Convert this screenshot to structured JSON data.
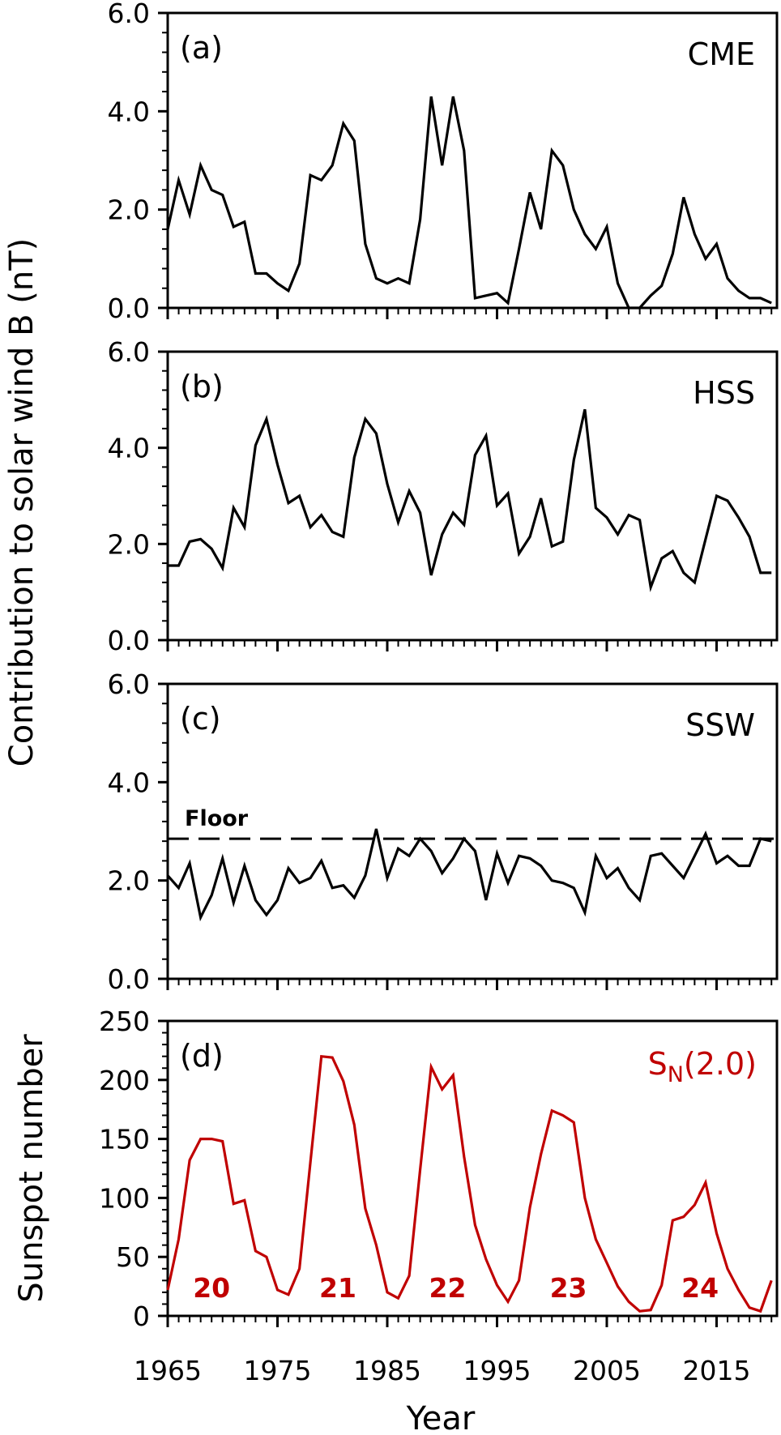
{
  "chart_data": [
    {
      "type": "line",
      "panel": "(a)",
      "series_name": "CME",
      "title": "",
      "ylabel": "Contribution to solar wind B (nT)",
      "ylim": [
        0,
        6
      ],
      "yticks": [
        "0.0",
        "2.0",
        "4.0",
        "6.0"
      ],
      "color": "#000000",
      "x": [
        1965,
        1966,
        1967,
        1968,
        1969,
        1970,
        1971,
        1972,
        1973,
        1974,
        1975,
        1976,
        1977,
        1978,
        1979,
        1980,
        1981,
        1982,
        1983,
        1984,
        1985,
        1986,
        1987,
        1988,
        1989,
        1990,
        1991,
        1992,
        1993,
        1994,
        1995,
        1996,
        1997,
        1998,
        1999,
        2000,
        2001,
        2002,
        2003,
        2004,
        2005,
        2006,
        2007,
        2008,
        2009,
        2010,
        2011,
        2012,
        2013,
        2014,
        2015,
        2016,
        2017,
        2018,
        2019,
        2020
      ],
      "values": [
        1.6,
        2.6,
        1.9,
        2.9,
        2.4,
        2.3,
        1.65,
        1.75,
        0.7,
        0.7,
        0.5,
        0.35,
        0.9,
        2.7,
        2.6,
        2.9,
        3.75,
        3.4,
        1.3,
        0.6,
        0.5,
        0.6,
        0.5,
        1.8,
        4.3,
        2.9,
        4.3,
        3.2,
        0.2,
        0.25,
        0.3,
        0.1,
        1.2,
        2.35,
        1.6,
        3.2,
        2.9,
        2.0,
        1.5,
        1.2,
        1.65,
        0.5,
        0.0,
        0.0,
        0.25,
        0.45,
        1.1,
        2.25,
        1.5,
        1.0,
        1.3,
        0.6,
        0.35,
        0.2,
        0.2,
        0.1
      ]
    },
    {
      "type": "line",
      "panel": "(b)",
      "series_name": "HSS",
      "ylim": [
        0,
        6
      ],
      "yticks": [
        "0.0",
        "2.0",
        "4.0",
        "6.0"
      ],
      "color": "#000000",
      "x": [
        1965,
        1966,
        1967,
        1968,
        1969,
        1970,
        1971,
        1972,
        1973,
        1974,
        1975,
        1976,
        1977,
        1978,
        1979,
        1980,
        1981,
        1982,
        1983,
        1984,
        1985,
        1986,
        1987,
        1988,
        1989,
        1990,
        1991,
        1992,
        1993,
        1994,
        1995,
        1996,
        1997,
        1998,
        1999,
        2000,
        2001,
        2002,
        2003,
        2004,
        2005,
        2006,
        2007,
        2008,
        2009,
        2010,
        2011,
        2012,
        2013,
        2014,
        2015,
        2016,
        2017,
        2018,
        2019,
        2020
      ],
      "values": [
        1.55,
        1.55,
        2.05,
        2.1,
        1.9,
        1.5,
        2.75,
        2.35,
        4.05,
        4.6,
        3.65,
        2.85,
        3.0,
        2.35,
        2.6,
        2.25,
        2.15,
        3.8,
        4.6,
        4.3,
        3.25,
        2.45,
        3.1,
        2.65,
        1.35,
        2.2,
        2.65,
        2.4,
        3.85,
        4.25,
        2.8,
        3.05,
        1.8,
        2.15,
        2.95,
        1.95,
        2.05,
        3.75,
        4.8,
        2.75,
        2.55,
        2.2,
        2.6,
        2.5,
        1.1,
        1.7,
        1.85,
        1.4,
        1.2,
        2.1,
        3.0,
        2.9,
        2.55,
        2.15,
        1.4,
        1.4
      ]
    },
    {
      "type": "line",
      "panel": "(c)",
      "series_name": "SSW",
      "ylim": [
        0,
        6
      ],
      "yticks": [
        "0.0",
        "2.0",
        "4.0",
        "6.0"
      ],
      "color": "#000000",
      "reference_line": {
        "label": "Floor",
        "value": 2.85,
        "style": "dashed"
      },
      "x": [
        1965,
        1966,
        1967,
        1968,
        1969,
        1970,
        1971,
        1972,
        1973,
        1974,
        1975,
        1976,
        1977,
        1978,
        1979,
        1980,
        1981,
        1982,
        1983,
        1984,
        1985,
        1986,
        1987,
        1988,
        1989,
        1990,
        1991,
        1992,
        1993,
        1994,
        1995,
        1996,
        1997,
        1998,
        1999,
        2000,
        2001,
        2002,
        2003,
        2004,
        2005,
        2006,
        2007,
        2008,
        2009,
        2010,
        2011,
        2012,
        2013,
        2014,
        2015,
        2016,
        2017,
        2018,
        2019,
        2020
      ],
      "values": [
        2.1,
        1.85,
        2.35,
        1.25,
        1.7,
        2.45,
        1.55,
        2.3,
        1.6,
        1.3,
        1.6,
        2.25,
        1.95,
        2.05,
        2.4,
        1.85,
        1.9,
        1.65,
        2.1,
        3.05,
        2.05,
        2.65,
        2.5,
        2.85,
        2.6,
        2.15,
        2.45,
        2.85,
        2.6,
        1.6,
        2.55,
        1.95,
        2.5,
        2.45,
        2.3,
        2.0,
        1.95,
        1.85,
        1.35,
        2.5,
        2.05,
        2.25,
        1.85,
        1.6,
        2.5,
        2.55,
        2.3,
        2.05,
        2.5,
        2.95,
        2.35,
        2.5,
        2.3,
        2.3,
        2.85,
        2.8
      ]
    },
    {
      "type": "line",
      "panel": "(d)",
      "series_name": "S_N(2.0)",
      "label_main": "S",
      "label_sub": "N",
      "label_tail": "(2.0)",
      "ylabel": "Sunspot number",
      "xlabel": "Year",
      "ylim": [
        0,
        250
      ],
      "yticks": [
        "0",
        "50",
        "100",
        "150",
        "200",
        "250"
      ],
      "color": "#c00000",
      "cycle_labels": [
        {
          "text": "20",
          "year": 1969
        },
        {
          "text": "21",
          "year": 1980.5
        },
        {
          "text": "22",
          "year": 1990.5
        },
        {
          "text": "23",
          "year": 2001.5
        },
        {
          "text": "24",
          "year": 2013.5
        }
      ],
      "x": [
        1965,
        1966,
        1967,
        1968,
        1969,
        1970,
        1971,
        1972,
        1973,
        1974,
        1975,
        1976,
        1977,
        1978,
        1979,
        1980,
        1981,
        1982,
        1983,
        1984,
        1985,
        1986,
        1987,
        1988,
        1989,
        1990,
        1991,
        1992,
        1993,
        1994,
        1995,
        1996,
        1997,
        1998,
        1999,
        2000,
        2001,
        2002,
        2003,
        2004,
        2005,
        2006,
        2007,
        2008,
        2009,
        2010,
        2011,
        2012,
        2013,
        2014,
        2015,
        2016,
        2017,
        2018,
        2019,
        2020
      ],
      "values": [
        22,
        65,
        132,
        150,
        150,
        148,
        95,
        98,
        55,
        50,
        22,
        18,
        40,
        130,
        220,
        219,
        199,
        162,
        91,
        60,
        20,
        15,
        34,
        124,
        211,
        192,
        204,
        135,
        77,
        48,
        26,
        12,
        30,
        92,
        137,
        174,
        170,
        164,
        100,
        65,
        45,
        25,
        12,
        4,
        5,
        26,
        81,
        84,
        94,
        113,
        70,
        40,
        22,
        7,
        4,
        30
      ]
    }
  ],
  "x_axis": {
    "label": "Year",
    "ticks": [
      "1965",
      "1975",
      "1985",
      "1995",
      "2005",
      "2015"
    ],
    "range": [
      1965,
      2020.5
    ]
  },
  "shared_ylabel": "Contribution to solar wind B (nT)"
}
